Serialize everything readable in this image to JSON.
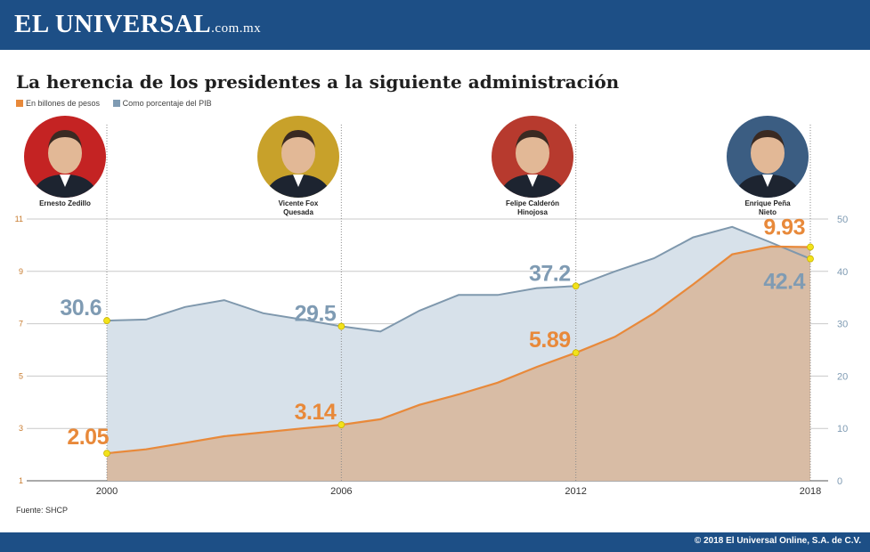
{
  "header": {
    "brand": "EL UNIVERSAL",
    "brand_suffix": ".com.mx"
  },
  "title": "La herencia de los presidentes a la siguiente administración",
  "legend": [
    {
      "label": "En billones de pesos",
      "color": "#e8893a"
    },
    {
      "label": "Como porcentaje del PIB",
      "color": "#7f9bb3"
    }
  ],
  "presidents": [
    {
      "name": "Ernesto Zedillo",
      "name2": "",
      "frame_color": "#c42323"
    },
    {
      "name": "Vicente Fox",
      "name2": "Quesada",
      "frame_color": "#c8a12a"
    },
    {
      "name": "Felipe Calderón",
      "name2": "Hinojosa",
      "frame_color": "#b73a2e"
    },
    {
      "name": "Enrique Peña",
      "name2": "Nieto",
      "frame_color": "#3b5d82"
    }
  ],
  "source": "Fuente: SHCP",
  "copyright": "© 2018 El Universal Online, S.A. de C.V.",
  "chart_data": {
    "type": "area",
    "x_ticks": [
      "2000",
      "2006",
      "2012",
      "2018"
    ],
    "left_axis": {
      "ticks": [
        1,
        3,
        5,
        7,
        9,
        11
      ],
      "range": [
        1,
        11
      ]
    },
    "right_axis": {
      "ticks": [
        0,
        10,
        20,
        30,
        40,
        50
      ],
      "range": [
        0,
        50
      ]
    },
    "series": [
      {
        "name": "En billones de pesos",
        "axis": "left",
        "color": "#e8893a",
        "x": [
          2000,
          2001,
          2002,
          2003,
          2004,
          2005,
          2006,
          2007,
          2008,
          2009,
          2010,
          2011,
          2012,
          2013,
          2014,
          2015,
          2016,
          2017,
          2018
        ],
        "values": [
          2.05,
          2.2,
          2.45,
          2.7,
          2.85,
          3.0,
          3.14,
          3.35,
          3.9,
          4.3,
          4.75,
          5.35,
          5.89,
          6.5,
          7.4,
          8.5,
          9.65,
          9.95,
          9.93
        ]
      },
      {
        "name": "Como porcentaje del PIB",
        "axis": "right",
        "color": "#7f9bb3",
        "x": [
          2000,
          2001,
          2002,
          2003,
          2004,
          2005,
          2006,
          2007,
          2008,
          2009,
          2010,
          2011,
          2012,
          2013,
          2014,
          2015,
          2016,
          2017,
          2018
        ],
        "values": [
          30.6,
          30.8,
          33.2,
          34.5,
          32.0,
          30.8,
          29.5,
          28.5,
          32.5,
          35.5,
          35.5,
          36.8,
          37.2,
          40.0,
          42.5,
          46.5,
          48.5,
          45.5,
          42.4
        ]
      }
    ],
    "labels": [
      {
        "series": 0,
        "x": 2000,
        "text": "2.05"
      },
      {
        "series": 0,
        "x": 2006,
        "text": "3.14"
      },
      {
        "series": 0,
        "x": 2012,
        "text": "5.89"
      },
      {
        "series": 0,
        "x": 2018,
        "text": "9.93"
      },
      {
        "series": 1,
        "x": 2000,
        "text": "30.6"
      },
      {
        "series": 1,
        "x": 2006,
        "text": "29.5"
      },
      {
        "series": 1,
        "x": 2012,
        "text": "37.2"
      },
      {
        "series": 1,
        "x": 2018,
        "text": "42.4"
      }
    ],
    "marker_color": "#f2e21a"
  }
}
